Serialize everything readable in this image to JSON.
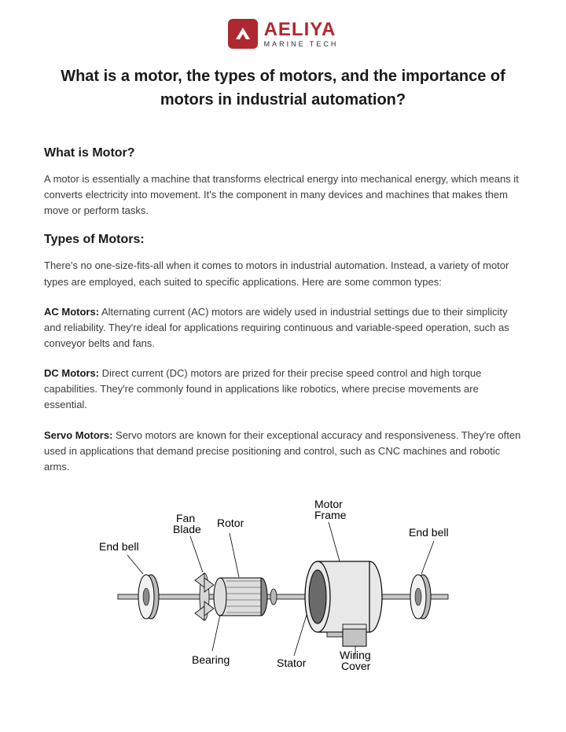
{
  "logo": {
    "brand": "AELIYA",
    "sub": "MARINE TECH",
    "icon_bg": "#b0282f"
  },
  "title": "What is a motor, the types of motors, and the importance of motors in industrial automation?",
  "sections": {
    "what_is": {
      "heading": "What is Motor?",
      "body": "A motor is essentially a machine that transforms electrical energy into mechanical energy, which means it converts electricity into movement. It's the component in many devices and machines that makes them move or perform tasks."
    },
    "types": {
      "heading": "Types of Motors:",
      "intro": "There's no one-size-fits-all when it comes to motors in industrial automation. Instead, a variety of motor types are employed, each suited to specific applications. Here are some common types:",
      "items": [
        {
          "label": "AC Motors:",
          "body": " Alternating current (AC) motors are widely used in industrial settings due to their simplicity and reliability. They're ideal for applications requiring continuous and variable-speed operation, such as conveyor belts and fans."
        },
        {
          "label": "DC Motors:",
          "body": " Direct current (DC) motors are prized for their precise speed control and high torque capabilities. They're commonly found in applications like robotics, where precise movements are essential."
        },
        {
          "label": "Servo Motors:",
          "body": " Servo motors are known for their exceptional accuracy and responsiveness. They're often used in applications that demand precise positioning and control, such as CNC machines and robotic arms."
        }
      ]
    }
  },
  "diagram": {
    "type": "infographic",
    "background_color": "#ffffff",
    "line_color": "#000000",
    "fill_colors": {
      "shaft": "#c9c9c9",
      "endbell_face": "#f2f2f2",
      "endbell_ring": "#b8b8b8",
      "rotor_body": "#dedede",
      "rotor_dark": "#8a8a8a",
      "frame_outer": "#e8e8e8",
      "frame_inner": "#6a6a6a",
      "wiring_cover": "#c3c3c3",
      "fan_blade": "#d6d6d6"
    },
    "labels": {
      "end_bell_left": "End bell",
      "fan_blade": "Fan\nBlade",
      "rotor": "Rotor",
      "bearing": "Bearing",
      "stator": "Stator",
      "motor_frame": "Motor\nFrame",
      "wiring_cover": "Wiring\nCover",
      "end_bell_right": "End bell"
    }
  }
}
